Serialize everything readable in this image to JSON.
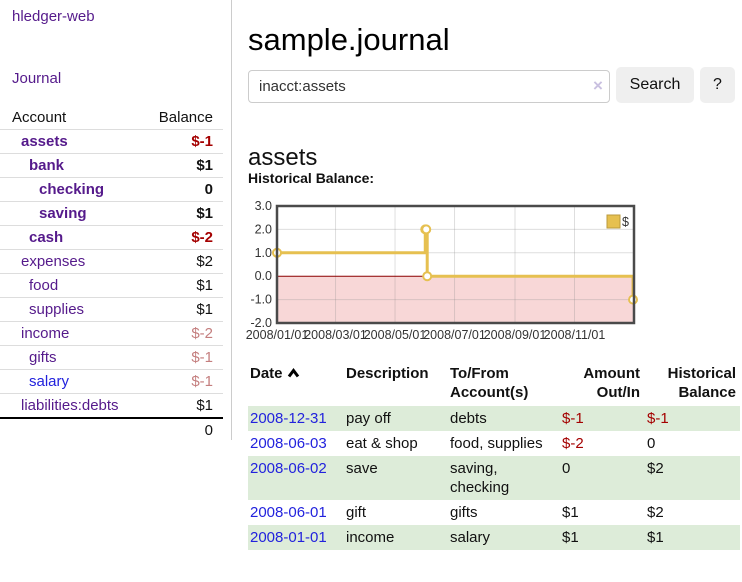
{
  "app": {
    "brand": "hledger-web"
  },
  "sidebar": {
    "journal_link": "Journal",
    "columns": {
      "account": "Account",
      "balance": "Balance"
    },
    "accounts": [
      {
        "name": "assets",
        "balance": "$-1",
        "name_class": "acct lvl1 bold",
        "bal_class": "bal bold neg"
      },
      {
        "name": "bank",
        "balance": "$1",
        "name_class": "acct lvl2 bold",
        "bal_class": "bal bold"
      },
      {
        "name": "checking",
        "balance": "0",
        "name_class": "acct lvl3 bold",
        "bal_class": "bal bold"
      },
      {
        "name": "saving",
        "balance": "$1",
        "name_class": "acct lvl3 bold",
        "bal_class": "bal bold"
      },
      {
        "name": "cash",
        "balance": "$-2",
        "name_class": "acct lvl2 bold",
        "bal_class": "bal bold neg"
      },
      {
        "name": "expenses",
        "balance": "$2",
        "name_class": "acct lvl1",
        "bal_class": "bal"
      },
      {
        "name": "food",
        "balance": "$1",
        "name_class": "acct lvl2",
        "bal_class": "bal"
      },
      {
        "name": "supplies",
        "balance": "$1",
        "name_class": "acct lvl2",
        "bal_class": "bal"
      },
      {
        "name": "income",
        "balance": "$-2",
        "name_class": "acct lvl1",
        "bal_class": "bal neg-soft"
      },
      {
        "name": "gifts",
        "balance": "$-1",
        "name_class": "acct lvl2",
        "bal_class": "bal neg-soft"
      },
      {
        "name": "salary",
        "balance": "$-1",
        "name_class": "acct lvl2 blue",
        "bal_class": "bal neg-soft"
      },
      {
        "name": "liabilities:debts",
        "balance": "$1",
        "name_class": "acct lvl1",
        "bal_class": "bal"
      }
    ],
    "total": "0"
  },
  "header": {
    "title": "sample.journal"
  },
  "search": {
    "value": "inacct:assets",
    "clear_icon": "×",
    "button": "Search",
    "help_button": "?"
  },
  "account_page": {
    "heading": "assets",
    "chart_label": "Historical Balance:"
  },
  "chart_data": {
    "type": "line",
    "title": "Historical Balance:",
    "series": [
      {
        "name": "$",
        "color": "#e6c050",
        "step": "post",
        "x": [
          "2008-01-01",
          "2008-06-01",
          "2008-06-02",
          "2008-06-03",
          "2008-12-31"
        ],
        "y": [
          1,
          2,
          2,
          0,
          -1
        ]
      }
    ],
    "ylim": [
      -2,
      3
    ],
    "xlim": [
      "2008-01-01",
      "2009-01-01"
    ],
    "y_ticks": [
      "3.0",
      "2.0",
      "1.0",
      "0.0",
      "-1.0",
      "-2.0"
    ],
    "x_ticks": [
      "2008/01/01",
      "2008/03/01",
      "2008/05/01",
      "2008/07/01",
      "2008/09/01",
      "2008/11/01"
    ],
    "grid": true,
    "legend_position": "top-right",
    "negative_region_color": "#f8d7d7",
    "zero_line_color": "#8b0000",
    "frame_color": "#4a4a4a"
  },
  "register": {
    "columns": {
      "date": "Date",
      "description": "Description",
      "tofrom": "To/From Account(s)",
      "amount": "Amount Out/In",
      "balance": "Historical Balance"
    },
    "rows": [
      {
        "date": "2008-12-31",
        "description": "pay off",
        "accounts": "debts",
        "amount": "$-1",
        "balance": "$-1",
        "amount_class": "num neg",
        "balance_class": "num neg"
      },
      {
        "date": "2008-06-03",
        "description": "eat & shop",
        "accounts": "food, supplies",
        "amount": "$-2",
        "balance": "0",
        "amount_class": "num neg",
        "balance_class": "num"
      },
      {
        "date": "2008-06-02",
        "description": "save",
        "accounts": "saving, checking",
        "amount": "0",
        "balance": "$2",
        "amount_class": "num",
        "balance_class": "num"
      },
      {
        "date": "2008-06-01",
        "description": "gift",
        "accounts": "gifts",
        "amount": "$1",
        "balance": "$2",
        "amount_class": "num",
        "balance_class": "num"
      },
      {
        "date": "2008-01-01",
        "description": "income",
        "accounts": "salary",
        "amount": "$1",
        "balance": "$1",
        "amount_class": "num",
        "balance_class": "num"
      }
    ]
  }
}
